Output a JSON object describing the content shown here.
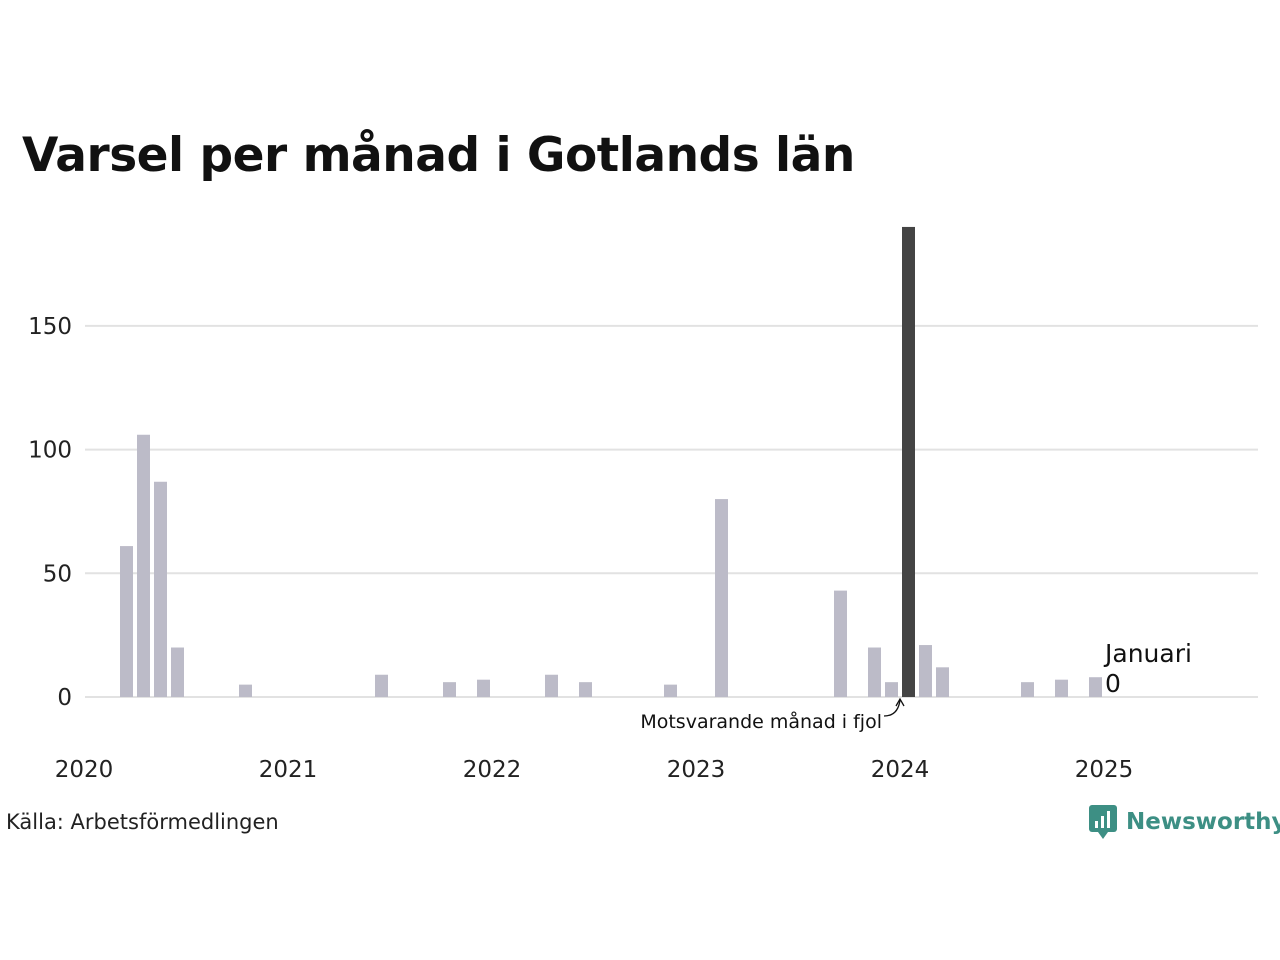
{
  "title": "Varsel per månad i Gotlands län",
  "source": "Källa: Arbetsförmedlingen",
  "brand": "Newsworthy",
  "colors": {
    "bar": "#bcbbc8",
    "highlight": "#444444",
    "grid": "#e2e2e2",
    "brand": "#3d8f84"
  },
  "annotation": "Motsvarande månad i fjol",
  "callout": {
    "month": "Januari",
    "value": "0"
  },
  "chart_data": {
    "type": "bar",
    "title": "Varsel per månad i Gotlands län",
    "xlabel": "",
    "ylabel": "",
    "ylim": [
      0,
      190
    ],
    "yticks": [
      0,
      50,
      100,
      150
    ],
    "x_tick_labels": [
      "2020",
      "2021",
      "2022",
      "2023",
      "2024",
      "2025"
    ],
    "grid": true,
    "highlight_month": "2024-01",
    "months": [
      "2020-01",
      "2020-02",
      "2020-03",
      "2020-04",
      "2020-05",
      "2020-06",
      "2020-07",
      "2020-08",
      "2020-09",
      "2020-10",
      "2020-11",
      "2020-12",
      "2021-01",
      "2021-02",
      "2021-03",
      "2021-04",
      "2021-05",
      "2021-06",
      "2021-07",
      "2021-08",
      "2021-09",
      "2021-10",
      "2021-11",
      "2021-12",
      "2022-01",
      "2022-02",
      "2022-03",
      "2022-04",
      "2022-05",
      "2022-06",
      "2022-07",
      "2022-08",
      "2022-09",
      "2022-10",
      "2022-11",
      "2022-12",
      "2023-01",
      "2023-02",
      "2023-03",
      "2023-04",
      "2023-05",
      "2023-06",
      "2023-07",
      "2023-08",
      "2023-09",
      "2023-10",
      "2023-11",
      "2023-12",
      "2024-01",
      "2024-02",
      "2024-03",
      "2024-04",
      "2024-05",
      "2024-06",
      "2024-07",
      "2024-08",
      "2024-09",
      "2024-10",
      "2024-11",
      "2024-12",
      "2025-01"
    ],
    "values": [
      0,
      0,
      61,
      106,
      87,
      20,
      0,
      0,
      0,
      5,
      0,
      0,
      0,
      0,
      0,
      0,
      0,
      9,
      0,
      0,
      0,
      6,
      0,
      7,
      0,
      0,
      0,
      9,
      0,
      6,
      0,
      0,
      0,
      0,
      5,
      0,
      0,
      80,
      0,
      0,
      0,
      0,
      0,
      0,
      43,
      0,
      20,
      6,
      190,
      21,
      12,
      0,
      0,
      0,
      0,
      6,
      0,
      7,
      0,
      8,
      0
    ]
  }
}
